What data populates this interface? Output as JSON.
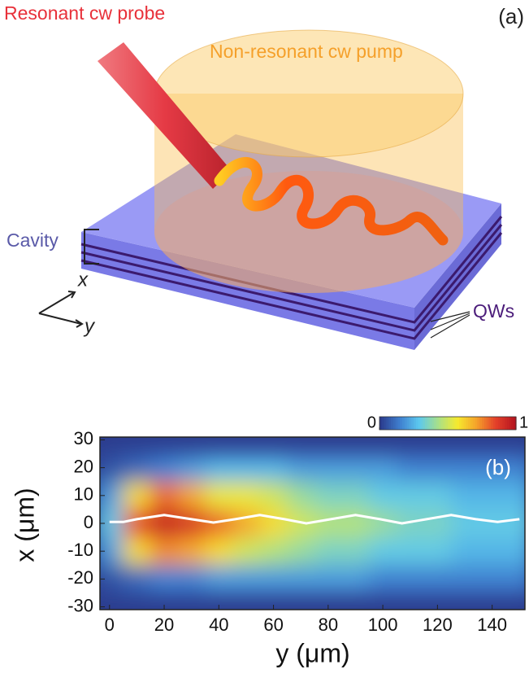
{
  "panel_a": {
    "label": "(a)",
    "probe": "Resonant cw probe",
    "pump": "Non-resonant cw pump",
    "cavity": "Cavity",
    "axis_x": "x",
    "axis_y": "y",
    "qws": "QWs"
  },
  "chart_data": {
    "type": "heatmap",
    "panel_label": "(b)",
    "x_label": "y (μm)",
    "y_label": "x (μm)",
    "x": [
      0,
      10,
      20,
      30,
      40,
      50,
      60,
      70,
      80,
      90,
      100,
      110,
      120,
      130,
      140,
      150
    ],
    "y": [
      20,
      10,
      0,
      -10,
      -20
    ],
    "z": [
      [
        0.05,
        0.1,
        0.15,
        0.2,
        0.25,
        0.25,
        0.25,
        0.2,
        0.2,
        0.2,
        0.2,
        0.15,
        0.15,
        0.15,
        0.15,
        0.15
      ],
      [
        0.2,
        0.6,
        0.8,
        0.7,
        0.55,
        0.55,
        0.5,
        0.4,
        0.35,
        0.35,
        0.3,
        0.3,
        0.3,
        0.25,
        0.25,
        0.25
      ],
      [
        0.3,
        0.85,
        0.95,
        0.9,
        0.8,
        0.7,
        0.6,
        0.5,
        0.45,
        0.45,
        0.4,
        0.35,
        0.35,
        0.3,
        0.3,
        0.3
      ],
      [
        0.2,
        0.6,
        0.75,
        0.7,
        0.6,
        0.5,
        0.45,
        0.4,
        0.35,
        0.35,
        0.3,
        0.3,
        0.3,
        0.25,
        0.25,
        0.25
      ],
      [
        0.05,
        0.1,
        0.15,
        0.15,
        0.2,
        0.2,
        0.2,
        0.2,
        0.2,
        0.2,
        0.15,
        0.15,
        0.15,
        0.15,
        0.15,
        0.15
      ]
    ],
    "xlim": [
      -3.5,
      152
    ],
    "ylim": [
      -31,
      31
    ],
    "xticks": [
      0,
      20,
      40,
      60,
      80,
      100,
      120,
      140
    ],
    "yticks": [
      -30,
      -20,
      -10,
      0,
      10,
      20,
      30
    ],
    "colormap": [
      "#2b3c8e",
      "#3f7fcf",
      "#5cc8ef",
      "#a8e08a",
      "#f6ea2e",
      "#f5a22a",
      "#e4402a",
      "#b5151f"
    ],
    "colorbar_ticks": [
      0,
      1
    ],
    "trajectory": {
      "color": "#ffffff",
      "x": [
        0,
        5,
        10,
        20,
        30,
        38,
        46,
        55,
        64,
        72,
        81,
        90,
        99,
        107,
        116,
        125,
        134,
        142,
        150
      ],
      "values": [
        0.5,
        0.5,
        1.5,
        3,
        1.5,
        0.3,
        1.5,
        3,
        1.5,
        0,
        1.5,
        3,
        1.5,
        0,
        1.5,
        3,
        1.5,
        0.5,
        1.5
      ]
    }
  }
}
